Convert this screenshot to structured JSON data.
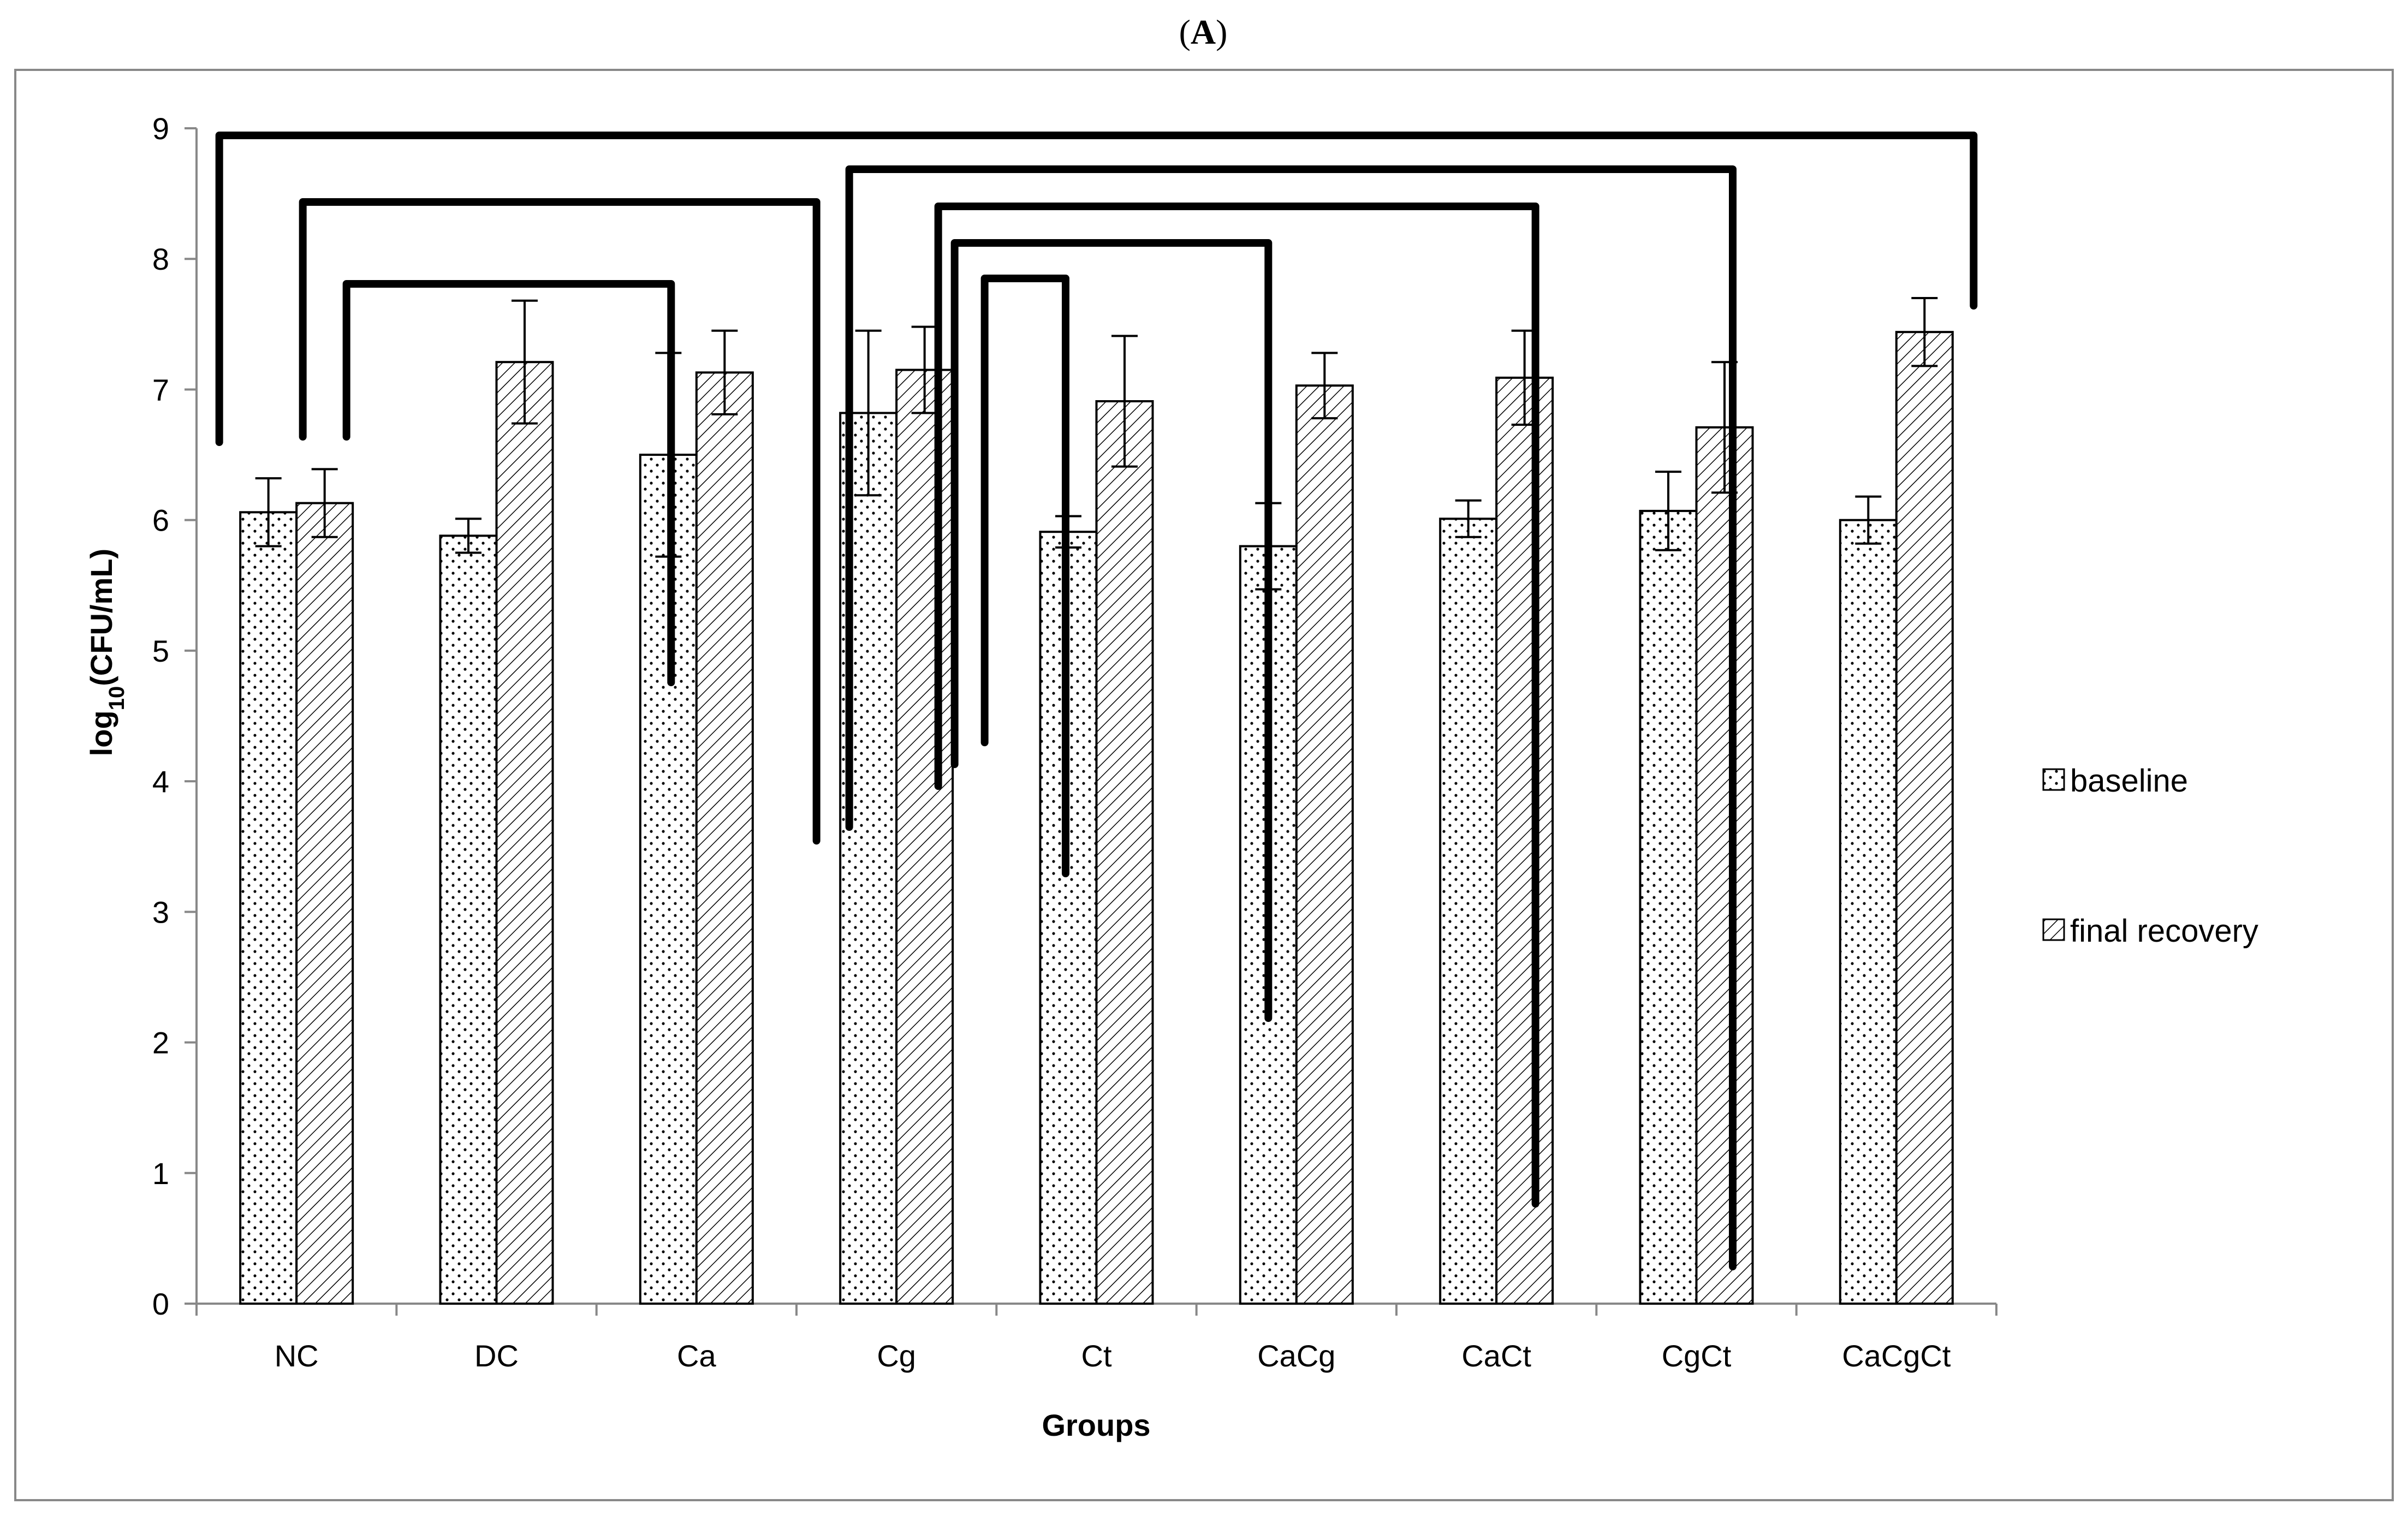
{
  "panel_label": "A",
  "chart_data": {
    "type": "bar",
    "xlabel": "Groups",
    "ylabel_main": "log",
    "ylabel_sub": "10",
    "ylabel_rest": "(CFU/mL)",
    "ylim": [
      0,
      9
    ],
    "yticks": [
      0,
      1,
      2,
      3,
      4,
      5,
      6,
      7,
      8,
      9
    ],
    "categories": [
      "NC",
      "DC",
      "Ca",
      "Cg",
      "Ct",
      "CaCg",
      "CaCt",
      "CgCt",
      "CaCgCt"
    ],
    "series": [
      {
        "name": "baseline",
        "pattern": "dots",
        "values": [
          6.06,
          5.88,
          6.5,
          6.82,
          5.91,
          5.8,
          6.01,
          6.07,
          6.0
        ],
        "errors": [
          0.26,
          0.13,
          0.78,
          0.63,
          0.12,
          0.33,
          0.14,
          0.3,
          0.18
        ]
      },
      {
        "name": "final recovery",
        "pattern": "hatch",
        "values": [
          6.13,
          7.21,
          7.13,
          7.15,
          6.91,
          7.03,
          7.09,
          6.71,
          7.44
        ],
        "errors": [
          0.26,
          0.47,
          0.32,
          0.33,
          0.5,
          0.25,
          0.36,
          0.5,
          0.26
        ]
      }
    ],
    "comparisons": [
      {
        "left": [
          0,
          0
        ],
        "right": [
          8,
          1
        ]
      },
      {
        "left": [
          0,
          1
        ],
        "right": [
          3,
          0
        ]
      },
      {
        "left": [
          0,
          1
        ],
        "right": [
          2,
          0
        ]
      },
      {
        "left": [
          3,
          0
        ],
        "right": [
          7,
          1
        ]
      },
      {
        "left": [
          3,
          1
        ],
        "right": [
          6,
          1
        ]
      },
      {
        "left": [
          3,
          1
        ],
        "right": [
          5,
          0
        ]
      },
      {
        "left": [
          3,
          1
        ],
        "right": [
          4,
          0
        ]
      }
    ],
    "legend_position": "right",
    "grid": false
  },
  "colors": {
    "bar_fill": "#ffffff",
    "ink": "#000000",
    "frame": "#888888",
    "axis": "#888888"
  }
}
